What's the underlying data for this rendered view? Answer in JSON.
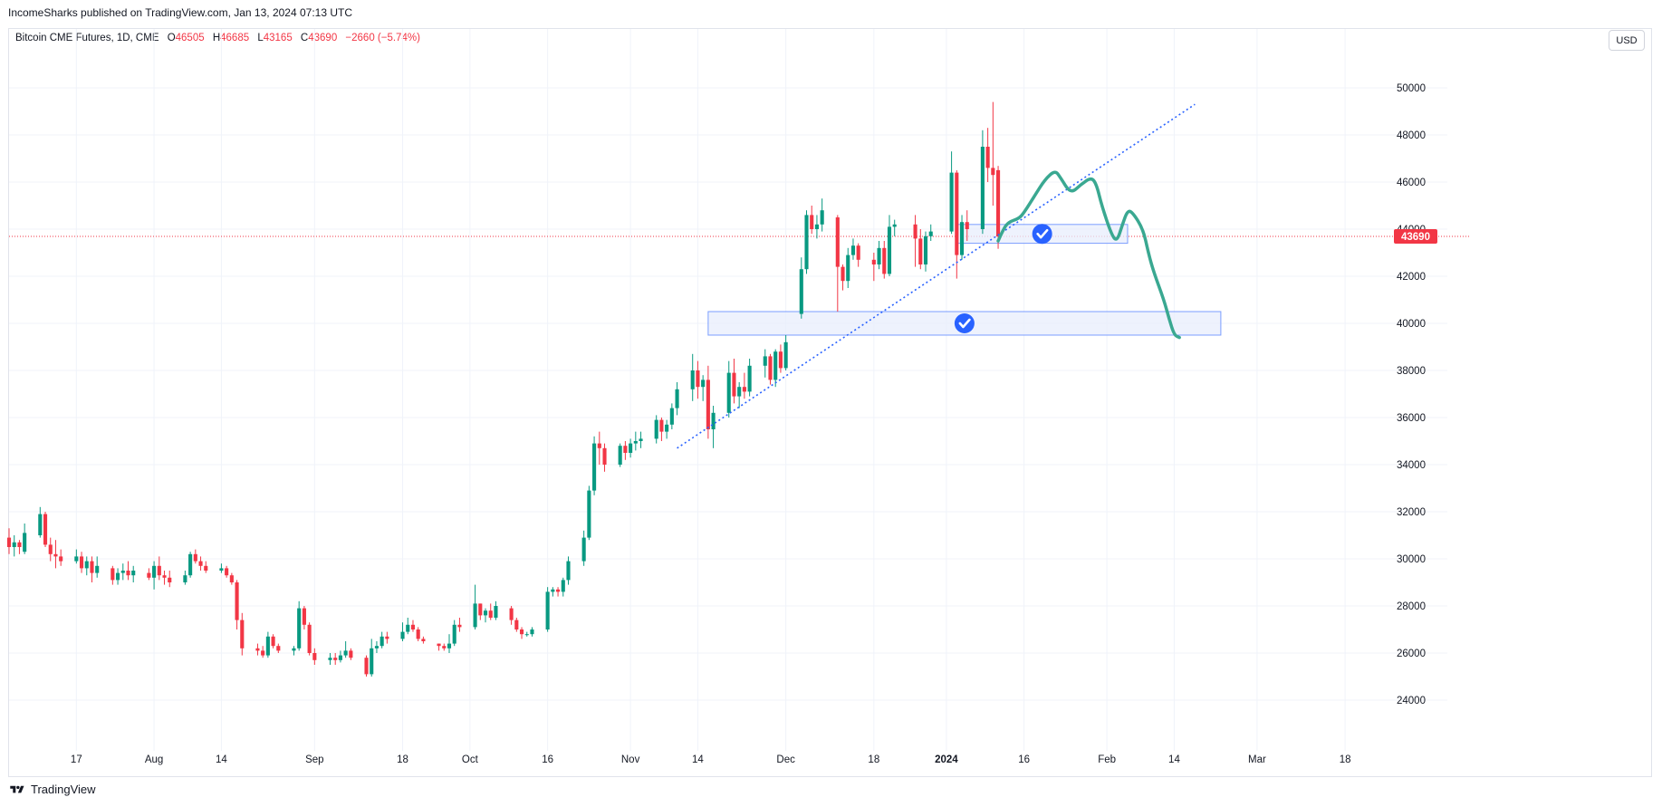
{
  "header": {
    "published": "IncomeSharks published on TradingView.com, Jan 13, 2024 07:13 UTC"
  },
  "legend": {
    "symbol": "Bitcoin CME Futures, 1D, CME",
    "open_label": "O",
    "open": "46505",
    "high_label": "H",
    "high": "46685",
    "low_label": "L",
    "low": "43165",
    "close_label": "C",
    "close": "43690",
    "change": "−2660 (−5.74%)"
  },
  "currency_button": "USD",
  "footer": {
    "brand": "TradingView"
  },
  "colors": {
    "up": "#089981",
    "down": "#f23645",
    "trendline": "#2962ff",
    "zone_fill": "#e8eefc",
    "zone_border": "#2962ff",
    "projection": "#3aa891",
    "last_price_line": "#f23645"
  },
  "icons": [
    "tradingview-logo-icon",
    "check-circle-icon"
  ],
  "chart_data": {
    "type": "candlestick",
    "title": "Bitcoin CME Futures, 1D, CME",
    "ylim": [
      22000,
      51500
    ],
    "y_ticks": [
      24000,
      26000,
      28000,
      30000,
      32000,
      34000,
      36000,
      38000,
      40000,
      42000,
      44000,
      46000,
      48000,
      50000
    ],
    "x_ticks": [
      {
        "label": "17",
        "date": "2023-07-17"
      },
      {
        "label": "Aug",
        "date": "2023-08-01"
      },
      {
        "label": "14",
        "date": "2023-08-14"
      },
      {
        "label": "Sep",
        "date": "2023-09-01"
      },
      {
        "label": "18",
        "date": "2023-09-18"
      },
      {
        "label": "Oct",
        "date": "2023-10-01"
      },
      {
        "label": "16",
        "date": "2023-10-16"
      },
      {
        "label": "Nov",
        "date": "2023-11-01"
      },
      {
        "label": "14",
        "date": "2023-11-14"
      },
      {
        "label": "Dec",
        "date": "2023-12-01"
      },
      {
        "label": "18",
        "date": "2023-12-18"
      },
      {
        "label": "2024",
        "date": "2024-01-01"
      },
      {
        "label": "16",
        "date": "2024-01-16"
      },
      {
        "label": "Feb",
        "date": "2024-02-01"
      },
      {
        "label": "14",
        "date": "2024-02-14"
      },
      {
        "label": "Mar",
        "date": "2024-03-01"
      },
      {
        "label": "18",
        "date": "2024-03-18"
      }
    ],
    "x_range": [
      "2023-07-04",
      "2024-03-22"
    ],
    "last_price": 43690,
    "candles": [
      [
        "2023-07-04",
        30900,
        31300,
        30200,
        30500
      ],
      [
        "2023-07-05",
        30500,
        31000,
        30100,
        30700
      ],
      [
        "2023-07-06",
        30700,
        30800,
        30200,
        30500
      ],
      [
        "2023-07-07",
        30300,
        31500,
        30200,
        31100
      ],
      [
        "2023-07-10",
        31000,
        32200,
        30900,
        31900
      ],
      [
        "2023-07-11",
        31900,
        32000,
        30500,
        30600
      ],
      [
        "2023-07-12",
        30600,
        30900,
        29900,
        30200
      ],
      [
        "2023-07-13",
        30200,
        30800,
        29600,
        30100
      ],
      [
        "2023-07-14",
        30100,
        30400,
        29700,
        29900
      ],
      [
        "2023-07-17",
        29900,
        30400,
        29800,
        30100
      ],
      [
        "2023-07-18",
        30100,
        30300,
        29400,
        29600
      ],
      [
        "2023-07-19",
        29600,
        30100,
        29300,
        29900
      ],
      [
        "2023-07-20",
        29900,
        30100,
        29000,
        29400
      ],
      [
        "2023-07-21",
        29400,
        30100,
        29200,
        29700
      ],
      [
        "2023-07-24",
        29600,
        29700,
        28900,
        29100
      ],
      [
        "2023-07-25",
        29100,
        29600,
        28900,
        29400
      ],
      [
        "2023-07-26",
        29400,
        29800,
        29100,
        29500
      ],
      [
        "2023-07-27",
        29500,
        29900,
        29100,
        29300
      ],
      [
        "2023-07-28",
        29300,
        29700,
        29000,
        29500
      ],
      [
        "2023-07-31",
        29400,
        29600,
        29100,
        29200
      ],
      [
        "2023-08-01",
        29200,
        29900,
        28700,
        29700
      ],
      [
        "2023-08-02",
        29700,
        30100,
        29100,
        29300
      ],
      [
        "2023-08-03",
        29300,
        29500,
        28900,
        29200
      ],
      [
        "2023-08-04",
        29200,
        29500,
        28800,
        29000
      ],
      [
        "2023-08-07",
        29000,
        29500,
        28900,
        29300
      ],
      [
        "2023-08-08",
        29300,
        30300,
        29200,
        30200
      ],
      [
        "2023-08-09",
        30200,
        30400,
        29800,
        29900
      ],
      [
        "2023-08-10",
        29900,
        30100,
        29500,
        29700
      ],
      [
        "2023-08-11",
        29700,
        29900,
        29400,
        29500
      ],
      [
        "2023-08-14",
        29500,
        29800,
        29400,
        29600
      ],
      [
        "2023-08-15",
        29600,
        29700,
        29200,
        29300
      ],
      [
        "2023-08-16",
        29300,
        29400,
        28900,
        29000
      ],
      [
        "2023-08-17",
        29000,
        29100,
        27000,
        27400
      ],
      [
        "2023-08-18",
        27400,
        27700,
        25900,
        26200
      ],
      [
        "2023-08-21",
        26200,
        26400,
        25900,
        26100
      ],
      [
        "2023-08-22",
        26100,
        26300,
        25800,
        25900
      ],
      [
        "2023-08-23",
        25900,
        26900,
        25800,
        26700
      ],
      [
        "2023-08-24",
        26700,
        26800,
        26200,
        26300
      ],
      [
        "2023-08-25",
        26300,
        26400,
        26000,
        26100
      ],
      [
        "2023-08-28",
        26100,
        26300,
        25900,
        26200
      ],
      [
        "2023-08-29",
        26200,
        28200,
        26100,
        27900
      ],
      [
        "2023-08-30",
        27900,
        28000,
        27000,
        27200
      ],
      [
        "2023-08-31",
        27200,
        27300,
        25900,
        26000
      ],
      [
        "2023-09-01",
        26000,
        26200,
        25500,
        25700
      ],
      [
        "2023-09-04",
        25700,
        26000,
        25500,
        25800
      ],
      [
        "2023-09-05",
        25800,
        26000,
        25500,
        25700
      ],
      [
        "2023-09-06",
        25700,
        26100,
        25600,
        25900
      ],
      [
        "2023-09-07",
        25900,
        26500,
        25800,
        26100
      ],
      [
        "2023-09-08",
        26100,
        26200,
        25700,
        25800
      ],
      [
        "2023-09-11",
        25800,
        25900,
        25000,
        25100
      ],
      [
        "2023-09-12",
        25100,
        26600,
        25000,
        26200
      ],
      [
        "2023-09-13",
        26200,
        26500,
        26000,
        26300
      ],
      [
        "2023-09-14",
        26300,
        26900,
        26200,
        26700
      ],
      [
        "2023-09-15",
        26700,
        26900,
        26400,
        26600
      ],
      [
        "2023-09-18",
        26600,
        27300,
        26500,
        26900
      ],
      [
        "2023-09-19",
        26900,
        27500,
        26800,
        27200
      ],
      [
        "2023-09-20",
        27200,
        27400,
        26900,
        27000
      ],
      [
        "2023-09-21",
        27000,
        27100,
        26500,
        26600
      ],
      [
        "2023-09-22",
        26600,
        26700,
        26400,
        26500
      ],
      [
        "2023-09-25",
        26400,
        26400,
        26100,
        26300
      ],
      [
        "2023-09-26",
        26300,
        26400,
        26100,
        26200
      ],
      [
        "2023-09-27",
        26200,
        26800,
        26000,
        26400
      ],
      [
        "2023-09-28",
        26400,
        27400,
        26300,
        27200
      ],
      [
        "2023-09-29",
        27200,
        27500,
        26900,
        27100
      ],
      [
        "2023-10-02",
        27100,
        28900,
        27000,
        28100
      ],
      [
        "2023-10-03",
        28100,
        28100,
        27400,
        27600
      ],
      [
        "2023-10-04",
        27600,
        27900,
        27300,
        27800
      ],
      [
        "2023-10-05",
        27800,
        28100,
        27400,
        27500
      ],
      [
        "2023-10-06",
        27500,
        28200,
        27400,
        28000
      ],
      [
        "2023-10-09",
        27900,
        28000,
        27200,
        27400
      ],
      [
        "2023-10-10",
        27400,
        27500,
        26900,
        27000
      ],
      [
        "2023-10-11",
        27000,
        27100,
        26600,
        26800
      ],
      [
        "2023-10-12",
        26800,
        26900,
        26700,
        26800
      ],
      [
        "2023-10-13",
        26800,
        27100,
        26700,
        27000
      ],
      [
        "2023-10-16",
        27000,
        28800,
        26900,
        28600
      ],
      [
        "2023-10-17",
        28600,
        28800,
        28400,
        28700
      ],
      [
        "2023-10-18",
        28700,
        28800,
        28400,
        28600
      ],
      [
        "2023-10-19",
        28600,
        29200,
        28400,
        29100
      ],
      [
        "2023-10-20",
        29100,
        30100,
        28900,
        29900
      ],
      [
        "2023-10-23",
        29900,
        31200,
        29700,
        30900
      ],
      [
        "2023-10-24",
        30900,
        33100,
        30800,
        32900
      ],
      [
        "2023-10-25",
        32900,
        35200,
        32700,
        34900
      ],
      [
        "2023-10-26",
        34900,
        35400,
        34000,
        34700
      ],
      [
        "2023-10-27",
        34700,
        34900,
        33700,
        34000
      ],
      [
        "2023-10-30",
        34000,
        34900,
        33900,
        34800
      ],
      [
        "2023-10-31",
        34800,
        35000,
        34200,
        34500
      ],
      [
        "2023-11-01",
        34500,
        35100,
        34300,
        34900
      ],
      [
        "2023-11-02",
        34900,
        35400,
        34600,
        35000
      ],
      [
        "2023-11-03",
        35000,
        35400,
        34700,
        35100
      ],
      [
        "2023-11-06",
        35100,
        36100,
        34900,
        35900
      ],
      [
        "2023-11-07",
        35900,
        36000,
        35000,
        35400
      ],
      [
        "2023-11-08",
        35400,
        35900,
        35100,
        35700
      ],
      [
        "2023-11-09",
        35700,
        36600,
        35500,
        36400
      ],
      [
        "2023-11-10",
        36400,
        37500,
        36100,
        37200
      ],
      [
        "2023-11-13",
        37200,
        38700,
        36700,
        38000
      ],
      [
        "2023-11-14",
        38000,
        38400,
        36800,
        37300
      ],
      [
        "2023-11-15",
        37300,
        37800,
        36700,
        37600
      ],
      [
        "2023-11-16",
        37600,
        38200,
        35100,
        35500
      ],
      [
        "2023-11-17",
        35500,
        36500,
        34700,
        36200
      ],
      [
        "2023-11-20",
        36200,
        38400,
        36000,
        37900
      ],
      [
        "2023-11-21",
        37900,
        38500,
        36600,
        36900
      ],
      [
        "2023-11-22",
        36900,
        37500,
        36400,
        37300
      ],
      [
        "2023-11-23",
        37300,
        37900,
        36800,
        37100
      ],
      [
        "2023-11-24",
        37100,
        38500,
        36900,
        38200
      ],
      [
        "2023-11-27",
        38200,
        38900,
        37700,
        38600
      ],
      [
        "2023-11-28",
        38600,
        38700,
        37400,
        37600
      ],
      [
        "2023-11-29",
        37600,
        38900,
        37300,
        38800
      ],
      [
        "2023-11-30",
        38800,
        39100,
        37900,
        38100
      ],
      [
        "2023-12-01",
        38100,
        39500,
        38000,
        39200
      ],
      [
        "2023-12-04",
        40400,
        42800,
        40200,
        42300
      ],
      [
        "2023-12-05",
        42300,
        44800,
        42100,
        44600
      ],
      [
        "2023-12-06",
        44600,
        45000,
        43800,
        44000
      ],
      [
        "2023-12-07",
        44000,
        44600,
        43600,
        44200
      ],
      [
        "2023-12-08",
        44200,
        45300,
        43900,
        44800
      ],
      [
        "2023-12-11",
        44500,
        44600,
        40500,
        42400
      ],
      [
        "2023-12-12",
        42400,
        42500,
        41400,
        41800
      ],
      [
        "2023-12-13",
        41800,
        43200,
        41500,
        42900
      ],
      [
        "2023-12-14",
        42900,
        43600,
        42700,
        43300
      ],
      [
        "2023-12-15",
        43300,
        43400,
        42400,
        42700
      ],
      [
        "2023-12-18",
        42700,
        43000,
        41800,
        42500
      ],
      [
        "2023-12-19",
        42500,
        43500,
        42300,
        43200
      ],
      [
        "2023-12-20",
        43200,
        43500,
        41900,
        42100
      ],
      [
        "2023-12-21",
        42100,
        44600,
        42000,
        44100
      ],
      [
        "2023-12-22",
        44100,
        44400,
        43700,
        44200
      ],
      [
        "2023-12-26",
        44200,
        44600,
        42400,
        43600
      ],
      [
        "2023-12-27",
        43600,
        44000,
        42300,
        42500
      ],
      [
        "2023-12-28",
        42500,
        43900,
        42200,
        43700
      ],
      [
        "2023-12-29",
        43700,
        44200,
        43500,
        43900
      ],
      [
        "2024-01-02",
        43900,
        47300,
        43800,
        46400
      ],
      [
        "2024-01-03",
        46400,
        46500,
        41900,
        42900
      ],
      [
        "2024-01-04",
        42900,
        44600,
        42700,
        44300
      ],
      [
        "2024-01-05",
        44300,
        44800,
        43500,
        44000
      ],
      [
        "2024-01-08",
        44000,
        48200,
        43800,
        47500
      ],
      [
        "2024-01-09",
        47500,
        48300,
        46000,
        46600
      ],
      [
        "2024-01-10",
        46600,
        49400,
        45000,
        46300
      ],
      [
        "2024-01-11",
        46505,
        46685,
        43165,
        43690
      ]
    ],
    "trendline": {
      "style": "dotted",
      "points": [
        [
          "2023-11-10",
          34700
        ],
        [
          "2024-02-18",
          49300
        ]
      ]
    },
    "zones": [
      {
        "from": "2024-01-03",
        "to": "2024-02-05",
        "low": 43400,
        "high": 44200,
        "marker": "check-circle-icon"
      },
      {
        "from": "2023-11-16",
        "to": "2024-02-23",
        "low": 39500,
        "high": 40500,
        "marker": "check-circle-icon"
      }
    ],
    "projection": [
      [
        "2024-01-11",
        43500
      ],
      [
        "2024-01-12",
        44000
      ],
      [
        "2024-01-13",
        44300
      ],
      [
        "2024-01-15",
        44450
      ],
      [
        "2024-01-16",
        44700
      ],
      [
        "2024-01-18",
        45400
      ],
      [
        "2024-01-20",
        46100
      ],
      [
        "2024-01-22",
        46500
      ],
      [
        "2024-01-23",
        46200
      ],
      [
        "2024-01-25",
        45500
      ],
      [
        "2024-01-27",
        45900
      ],
      [
        "2024-01-29",
        46200
      ],
      [
        "2024-01-30",
        45900
      ],
      [
        "2024-01-31",
        45000
      ],
      [
        "2024-02-02",
        43700
      ],
      [
        "2024-02-03",
        43500
      ],
      [
        "2024-02-04",
        44200
      ],
      [
        "2024-02-05",
        44800
      ],
      [
        "2024-02-06",
        44700
      ],
      [
        "2024-02-08",
        44000
      ],
      [
        "2024-02-09",
        43000
      ],
      [
        "2024-02-10",
        42200
      ],
      [
        "2024-02-12",
        41000
      ],
      [
        "2024-02-13",
        40200
      ],
      [
        "2024-02-14",
        39500
      ],
      [
        "2024-02-15",
        39400
      ]
    ]
  }
}
